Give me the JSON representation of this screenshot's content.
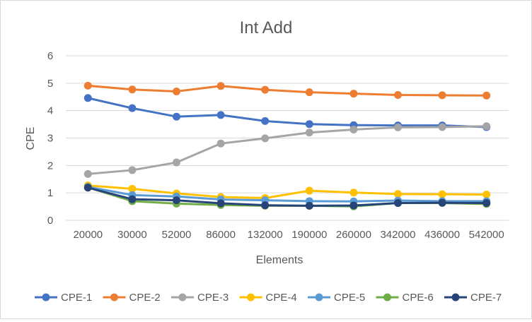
{
  "chart_data": {
    "type": "line",
    "title": "Int Add",
    "xlabel": "Elements",
    "ylabel": "CPE",
    "ylim": [
      0,
      6
    ],
    "yticks": [
      "0",
      "1",
      "2",
      "3",
      "4",
      "5",
      "6"
    ],
    "grid": "horizontal",
    "legend_position": "bottom",
    "categories": [
      "20000",
      "30000",
      "52000",
      "86000",
      "132000",
      "190000",
      "260000",
      "342000",
      "436000",
      "542000"
    ],
    "series": [
      {
        "name": "CPE-1",
        "color": "#4472c4",
        "values": [
          4.46,
          4.09,
          3.78,
          3.84,
          3.62,
          3.51,
          3.47,
          3.46,
          3.46,
          3.4
        ]
      },
      {
        "name": "CPE-2",
        "color": "#ed7d31",
        "values": [
          4.91,
          4.77,
          4.7,
          4.9,
          4.76,
          4.67,
          4.62,
          4.57,
          4.56,
          4.55
        ]
      },
      {
        "name": "CPE-3",
        "color": "#a5a5a5",
        "values": [
          1.69,
          1.83,
          2.11,
          2.8,
          2.99,
          3.2,
          3.31,
          3.39,
          3.4,
          3.43
        ]
      },
      {
        "name": "CPE-4",
        "color": "#ffc000",
        "values": [
          1.27,
          1.15,
          0.98,
          0.85,
          0.81,
          1.08,
          1.01,
          0.96,
          0.95,
          0.94
        ]
      },
      {
        "name": "CPE-5",
        "color": "#5b9bd5",
        "values": [
          1.22,
          0.92,
          0.87,
          0.76,
          0.73,
          0.7,
          0.69,
          0.72,
          0.7,
          0.7
        ]
      },
      {
        "name": "CPE-6",
        "color": "#70ad47",
        "values": [
          1.2,
          0.7,
          0.61,
          0.56,
          0.53,
          0.53,
          0.51,
          0.63,
          0.63,
          0.6
        ]
      },
      {
        "name": "CPE-7",
        "color": "#264478",
        "values": [
          1.19,
          0.77,
          0.73,
          0.62,
          0.55,
          0.53,
          0.54,
          0.63,
          0.64,
          0.63
        ]
      }
    ]
  }
}
